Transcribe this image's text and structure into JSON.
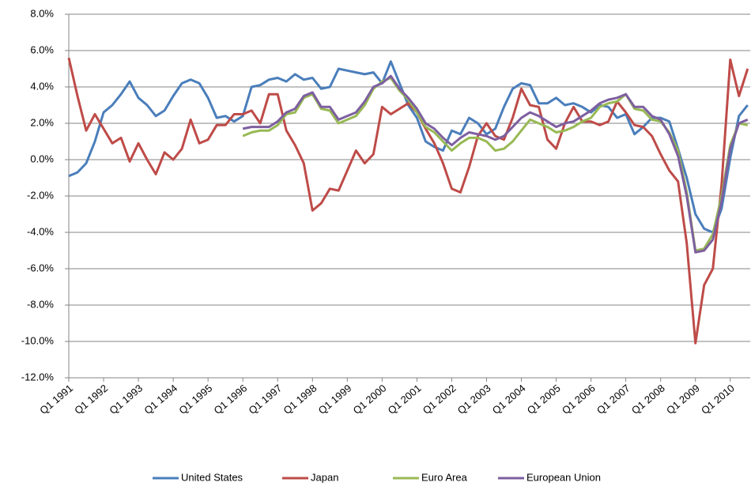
{
  "chart_data": {
    "type": "line",
    "categories": [
      "Q1 1991",
      null,
      null,
      null,
      "Q1 1992",
      null,
      null,
      null,
      "Q1 1993",
      null,
      null,
      null,
      "Q1 1994",
      null,
      null,
      null,
      "Q1 1995",
      null,
      null,
      null,
      "Q1 1996",
      null,
      null,
      null,
      "Q1 1997",
      null,
      null,
      null,
      "Q1 1998",
      null,
      null,
      null,
      "Q1 1999",
      null,
      null,
      null,
      "Q1 2000",
      null,
      null,
      null,
      "Q1 2001",
      null,
      null,
      null,
      "Q1 2002",
      null,
      null,
      null,
      "Q1 2003",
      null,
      null,
      null,
      "Q1 2004",
      null,
      null,
      null,
      "Q1 2005",
      null,
      null,
      null,
      "Q1 2006",
      null,
      null,
      null,
      "Q1 2007",
      null,
      null,
      null,
      "Q1 2008",
      null,
      null,
      null,
      "Q1 2009",
      null,
      null,
      null,
      "Q1 2010",
      null,
      null
    ],
    "series": [
      {
        "name": "United States",
        "color": "#4a7ebb",
        "values": [
          -0.9,
          -0.7,
          -0.2,
          1.0,
          2.6,
          3.0,
          3.6,
          4.3,
          3.4,
          3.0,
          2.4,
          2.7,
          3.5,
          4.2,
          4.4,
          4.2,
          3.4,
          2.3,
          2.4,
          2.1,
          2.4,
          4.0,
          4.1,
          4.4,
          4.5,
          4.3,
          4.7,
          4.4,
          4.5,
          3.9,
          4.0,
          5.0,
          4.9,
          4.8,
          4.7,
          4.8,
          4.2,
          5.4,
          4.2,
          3.0,
          2.3,
          1.0,
          0.7,
          0.5,
          1.6,
          1.4,
          2.3,
          2.0,
          1.4,
          1.7,
          2.9,
          3.9,
          4.2,
          4.1,
          3.1,
          3.1,
          3.4,
          3.0,
          3.1,
          2.9,
          2.6,
          3.0,
          2.9,
          2.3,
          2.5,
          1.4,
          1.8,
          2.3,
          2.3,
          2.1,
          0.6,
          -1.0,
          -3.0,
          -3.8,
          -4.0,
          -2.7,
          0.1,
          2.4,
          3.0
        ]
      },
      {
        "name": "Japan",
        "color": "#be4b48",
        "values": [
          5.6,
          3.5,
          1.6,
          2.5,
          1.7,
          0.9,
          1.2,
          -0.1,
          0.9,
          0.0,
          -0.8,
          0.4,
          0.0,
          0.6,
          2.2,
          0.9,
          1.1,
          1.9,
          1.9,
          2.5,
          2.5,
          2.7,
          2.0,
          3.6,
          3.6,
          1.6,
          0.8,
          -0.2,
          -2.8,
          -2.4,
          -1.6,
          -1.7,
          -0.6,
          0.5,
          -0.2,
          0.3,
          2.9,
          2.5,
          2.8,
          3.1,
          2.6,
          1.7,
          0.9,
          -0.2,
          -1.6,
          -1.8,
          -0.4,
          1.3,
          2.0,
          1.3,
          1.1,
          2.3,
          3.9,
          3.0,
          2.9,
          1.1,
          0.6,
          2.0,
          2.9,
          2.1,
          2.1,
          1.9,
          2.1,
          3.2,
          2.6,
          1.9,
          1.8,
          1.3,
          0.3,
          -0.6,
          -1.2,
          -4.6,
          -10.1,
          -6.9,
          -6.0,
          -1.4,
          5.5,
          3.5,
          5.0
        ]
      },
      {
        "name": "Euro Area",
        "color": "#98b954",
        "values": [
          null,
          null,
          null,
          null,
          null,
          null,
          null,
          null,
          null,
          null,
          null,
          null,
          null,
          null,
          null,
          null,
          null,
          null,
          null,
          null,
          1.3,
          1.5,
          1.6,
          1.6,
          1.9,
          2.5,
          2.6,
          3.4,
          3.6,
          2.8,
          2.7,
          2.0,
          2.2,
          2.4,
          3.0,
          3.9,
          4.3,
          4.5,
          3.8,
          3.3,
          2.6,
          1.8,
          1.5,
          1.0,
          0.5,
          0.9,
          1.2,
          1.2,
          1.0,
          0.5,
          0.6,
          1.0,
          1.6,
          2.2,
          2.0,
          1.8,
          1.5,
          1.6,
          1.8,
          2.1,
          2.3,
          2.9,
          3.1,
          3.2,
          3.6,
          2.8,
          2.7,
          2.2,
          2.1,
          1.5,
          0.5,
          -1.8,
          -5.0,
          -4.9,
          -4.1,
          -2.0,
          0.8,
          2.0,
          1.9
        ]
      },
      {
        "name": "European Union",
        "color": "#7d5fa0",
        "values": [
          null,
          null,
          null,
          null,
          null,
          null,
          null,
          null,
          null,
          null,
          null,
          null,
          null,
          null,
          null,
          null,
          null,
          null,
          null,
          null,
          1.7,
          1.8,
          1.8,
          1.8,
          2.1,
          2.6,
          2.8,
          3.5,
          3.7,
          2.9,
          2.9,
          2.2,
          2.4,
          2.6,
          3.2,
          4.0,
          4.2,
          4.6,
          3.9,
          3.4,
          2.8,
          2.0,
          1.7,
          1.2,
          0.8,
          1.2,
          1.5,
          1.4,
          1.3,
          1.1,
          1.3,
          1.8,
          2.3,
          2.6,
          2.4,
          2.1,
          1.8,
          2.0,
          2.1,
          2.4,
          2.7,
          3.1,
          3.3,
          3.4,
          3.6,
          2.9,
          2.9,
          2.4,
          2.2,
          1.4,
          0.2,
          -2.0,
          -5.1,
          -5.0,
          -4.4,
          -2.3,
          0.6,
          2.0,
          2.2
        ]
      }
    ],
    "ylim": [
      -12,
      8
    ],
    "yticks": [
      {
        "value": -12,
        "label": "-12.0%"
      },
      {
        "value": -10,
        "label": "-10.0%"
      },
      {
        "value": -8,
        "label": "-8.0%"
      },
      {
        "value": -6,
        "label": "-6.0%"
      },
      {
        "value": -4,
        "label": "-4.0%"
      },
      {
        "value": -2,
        "label": "-2.0%"
      },
      {
        "value": 0,
        "label": "0.0%"
      },
      {
        "value": 2,
        "label": "2.0%"
      },
      {
        "value": 4,
        "label": "4.0%"
      },
      {
        "value": 6,
        "label": "6.0%"
      },
      {
        "value": 8,
        "label": "8.0%"
      }
    ],
    "grid": true,
    "legend": "bottom"
  }
}
